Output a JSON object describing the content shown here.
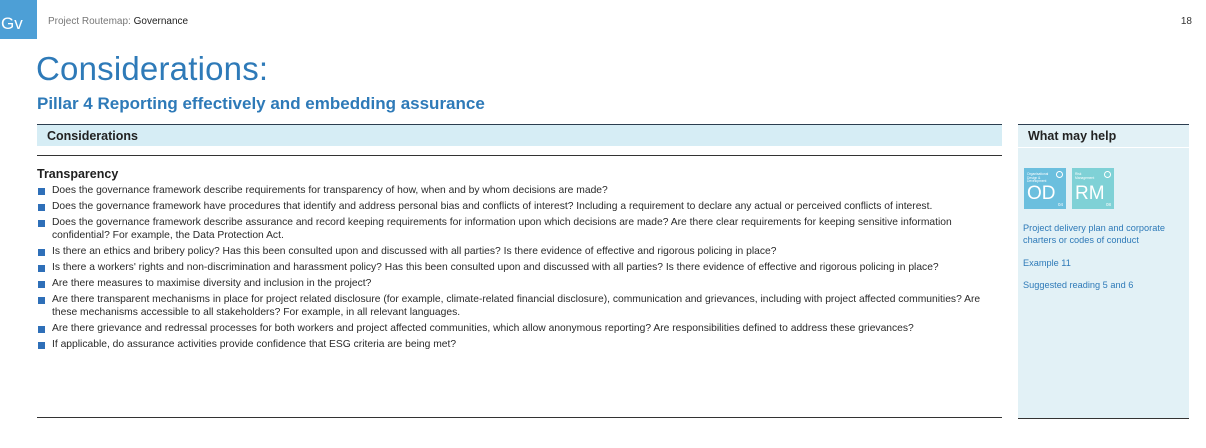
{
  "section_tab": "Gv",
  "breadcrumb": {
    "prefix": "Project Routemap:",
    "current": "Governance"
  },
  "page_number": "18",
  "title": "Considerations:",
  "subtitle": "Pillar 4 Reporting effectively and embedding assurance",
  "main": {
    "header": "Considerations",
    "section_heading": "Transparency",
    "items": [
      "Does the governance framework describe requirements for transparency of how, when and by whom decisions are made?",
      "Does the governance framework have procedures that identify and address personal bias and conflicts of interest? Including a requirement to declare any actual or perceived conflicts of interest.",
      "Does the governance framework describe assurance and record keeping requirements for information upon which decisions are made? Are there clear requirements for keeping sensitive information confidential? For example, the Data Protection Act.",
      "Is there an ethics and bribery policy? Has this been consulted upon and discussed with all parties? Is there evidence of effective and rigorous policing in place?",
      "Is there a workers' rights and non-discrimination and harassment policy? Has this been consulted upon and discussed with all parties? Is there evidence of effective and rigorous policing in place?",
      "Are there measures to maximise diversity and inclusion in the project?",
      "Are there transparent mechanisms in place for project related disclosure (for example, climate-related financial disclosure), communication and grievances, including with project affected communities? Are these mechanisms accessible to all stakeholders? For example, in all relevant languages.",
      "Are there grievance and redressal processes for both workers and project affected communities, which allow anonymous reporting? Are responsibilities defined to address these grievances?",
      "If applicable, do assurance activities provide confidence that ESG criteria are being met?"
    ]
  },
  "side": {
    "header": "What may help",
    "badges": [
      {
        "small_label": "Organisational Design & Development",
        "abbr": "OD",
        "num": "04",
        "color": "#6bbfde"
      },
      {
        "small_label": "Risk Management",
        "abbr": "RM",
        "num": "08",
        "color": "#7fd1d6"
      }
    ],
    "links": [
      "Project delivery plan and corporate charters or codes of conduct",
      "Example 11",
      "Suggested reading 5 and 6"
    ]
  }
}
